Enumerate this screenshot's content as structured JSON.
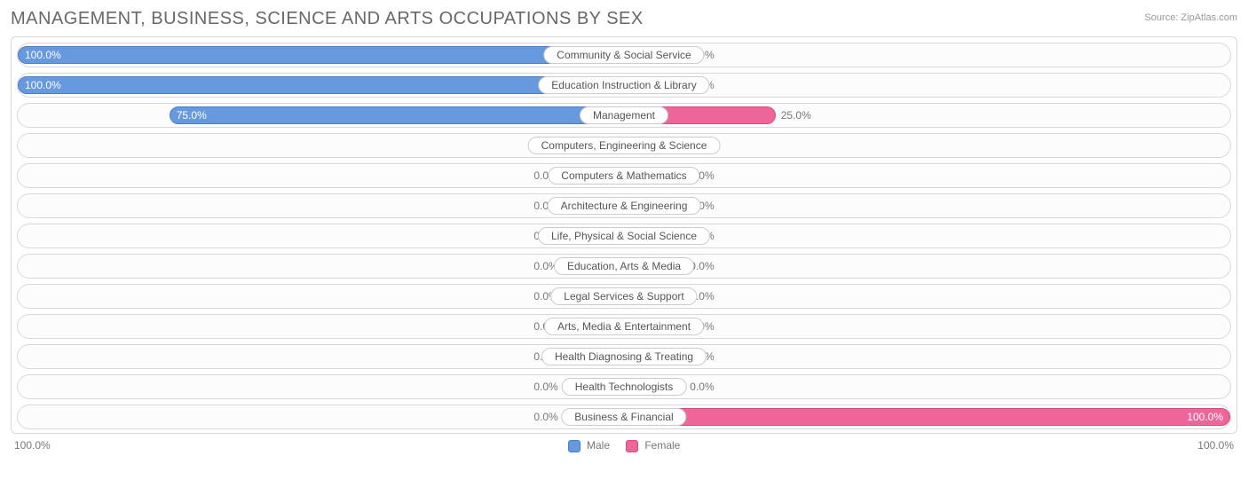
{
  "title": "MANAGEMENT, BUSINESS, SCIENCE AND ARTS OCCUPATIONS BY SEX",
  "source": "Source: ZipAtlas.com",
  "axis_left": "100.0%",
  "axis_right": "100.0%",
  "legend": {
    "male": "Male",
    "female": "Female"
  },
  "colors": {
    "male_fill": "#6699dd",
    "male_border": "#4d7fc4",
    "female_fill": "#ee6699",
    "female_border": "#d54d80",
    "row_border": "#d8d8d8",
    "text": "#777777",
    "title": "#686868",
    "min_bar_width_pct": 10
  },
  "rows": [
    {
      "label": "Community & Social Service",
      "male": 100.0,
      "female": 0.0
    },
    {
      "label": "Education Instruction & Library",
      "male": 100.0,
      "female": 0.0
    },
    {
      "label": "Management",
      "male": 75.0,
      "female": 25.0
    },
    {
      "label": "Computers, Engineering & Science",
      "male": 0.0,
      "female": 0.0
    },
    {
      "label": "Computers & Mathematics",
      "male": 0.0,
      "female": 0.0
    },
    {
      "label": "Architecture & Engineering",
      "male": 0.0,
      "female": 0.0
    },
    {
      "label": "Life, Physical & Social Science",
      "male": 0.0,
      "female": 0.0
    },
    {
      "label": "Education, Arts & Media",
      "male": 0.0,
      "female": 0.0
    },
    {
      "label": "Legal Services & Support",
      "male": 0.0,
      "female": 0.0
    },
    {
      "label": "Arts, Media & Entertainment",
      "male": 0.0,
      "female": 0.0
    },
    {
      "label": "Health Diagnosing & Treating",
      "male": 0.0,
      "female": 0.0
    },
    {
      "label": "Health Technologists",
      "male": 0.0,
      "female": 0.0
    },
    {
      "label": "Business & Financial",
      "male": 0.0,
      "female": 100.0
    }
  ]
}
